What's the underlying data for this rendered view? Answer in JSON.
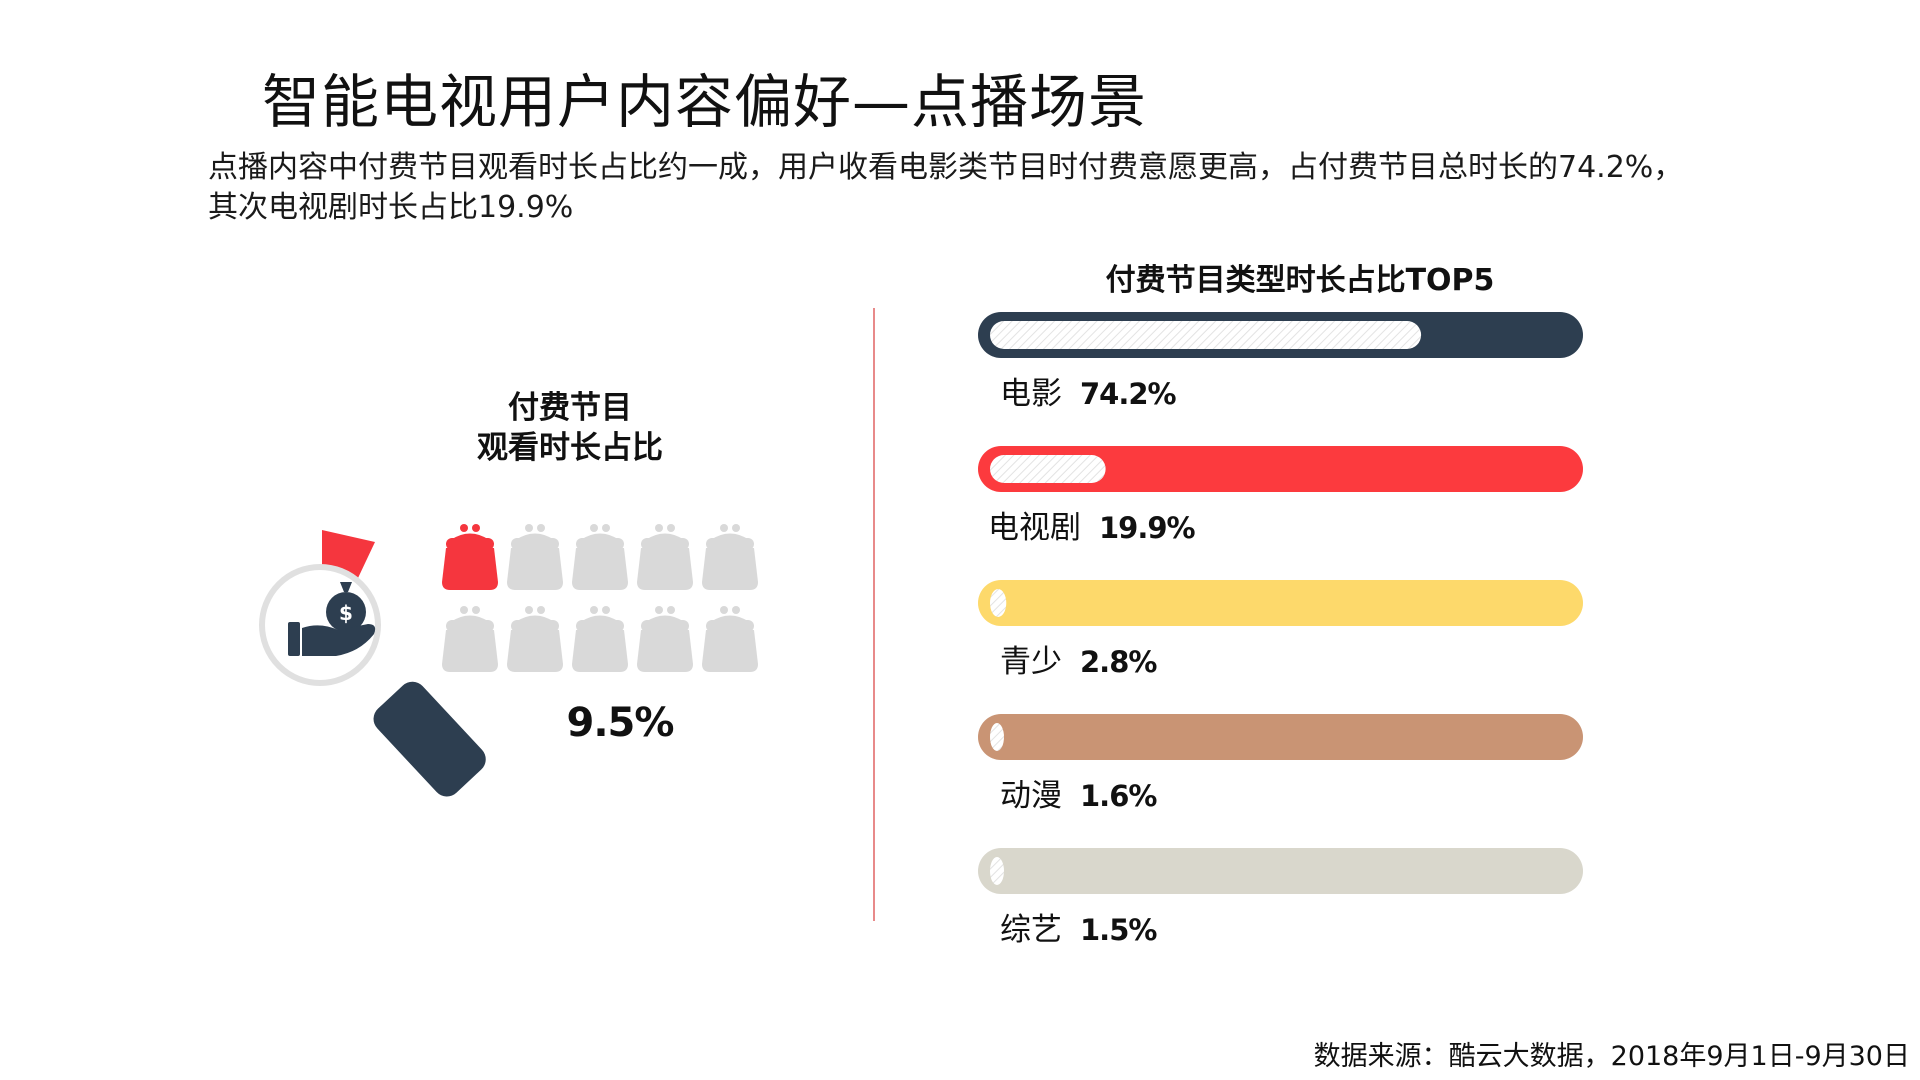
{
  "title": "智能电视用户内容偏好—点播场景",
  "subtitle_line1": "点播内容中付费节目观看时长占比约一成，用户收看电影类节目时付费意愿更高，占付费节目总时长的74.2%，",
  "subtitle_line2": "其次电视剧时长占比19.9%",
  "left_chart": {
    "title_line1": "付费节目",
    "title_line2": "观看时长占比",
    "value_label": "9.5%",
    "value": 9.5,
    "icon_total": 10,
    "icon_filled": 1,
    "icon_name": "purse-icon",
    "filled_color": "#f5363e",
    "empty_color": "#d9d9d9"
  },
  "chart_data": {
    "type": "bar",
    "title": "付费节目类型时长占比TOP5",
    "categories": [
      "电影",
      "电视剧",
      "青少",
      "动漫",
      "综艺"
    ],
    "values": [
      74.2,
      19.9,
      2.8,
      1.6,
      1.5
    ],
    "value_labels": [
      "74.2%",
      "19.9%",
      "2.8%",
      "1.6%",
      "1.5%"
    ],
    "unit": "%",
    "xlim": [
      0,
      100
    ],
    "colors": [
      "#2d3e50",
      "#fc3a3e",
      "#fdd96b",
      "#c99474",
      "#d9d7cc"
    ]
  },
  "source": "数据来源：酷云大数据，2018年9月1日-9月30日"
}
